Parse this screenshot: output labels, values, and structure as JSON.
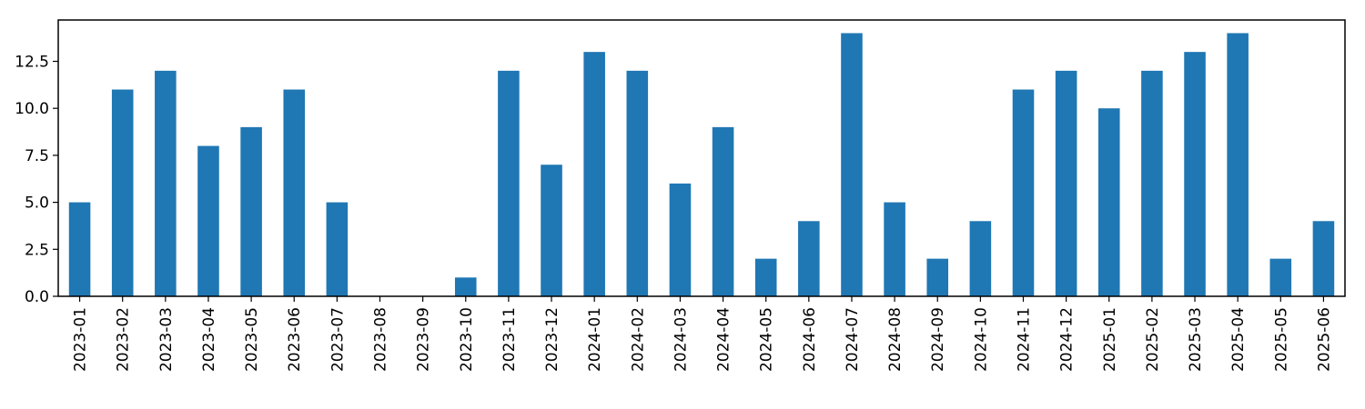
{
  "chart_data": {
    "type": "bar",
    "title": "",
    "xlabel": "",
    "ylabel": "",
    "categories": [
      "2023-01",
      "2023-02",
      "2023-03",
      "2023-04",
      "2023-05",
      "2023-06",
      "2023-07",
      "2023-08",
      "2023-09",
      "2023-10",
      "2023-11",
      "2023-12",
      "2024-01",
      "2024-02",
      "2024-03",
      "2024-04",
      "2024-05",
      "2024-06",
      "2024-07",
      "2024-08",
      "2024-09",
      "2024-10",
      "2024-11",
      "2024-12",
      "2025-01",
      "2025-02",
      "2025-03",
      "2025-04",
      "2025-05",
      "2025-06"
    ],
    "values": [
      5,
      11,
      12,
      8,
      9,
      11,
      5,
      0,
      0,
      1,
      12,
      7,
      13,
      12,
      6,
      9,
      2,
      4,
      14,
      5,
      2,
      4,
      11,
      12,
      10,
      12,
      13,
      14,
      2,
      4
    ],
    "ylim": [
      0,
      14.7
    ],
    "yticks": [
      0,
      2.5,
      5,
      7.5,
      10,
      12.5
    ],
    "ytick_labels": [
      "0.0",
      "2.5",
      "5.0",
      "7.5",
      "10.0",
      "12.5"
    ],
    "grid": false,
    "legend": "none",
    "bar_color": "#1f77b4"
  }
}
